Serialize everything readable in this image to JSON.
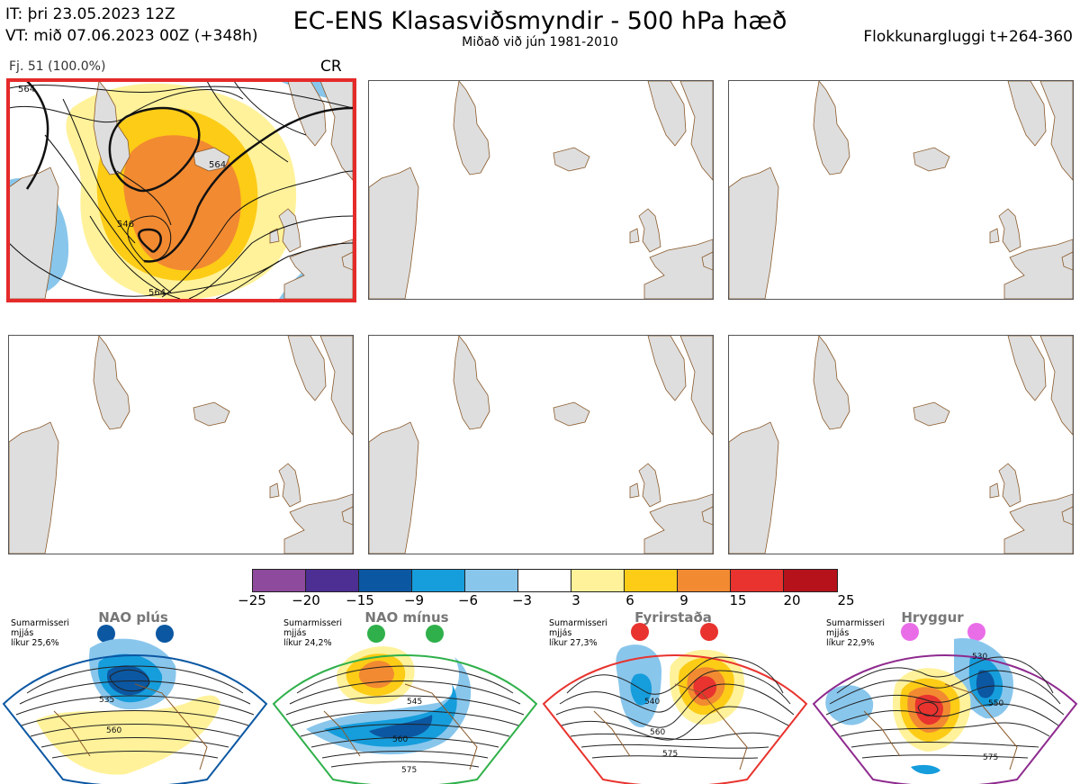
{
  "header": {
    "it_line": "IT: þri 23.05.2023 12Z",
    "vt_line": "VT: mið 07.06.2023 00Z  (+348h)",
    "title": "EC-ENS Klasasviðsmyndir - 500 hPa hæð",
    "subtitle": "Miðað við jún 1981-2010",
    "window": "Flokkunargluggi t+264-360"
  },
  "panel1": {
    "caption": "Fj. 51 (100.0%)",
    "regime_code": "CR",
    "contour_labels": [
      "564",
      "546",
      "564",
      "564"
    ]
  },
  "colorbar": {
    "colors": [
      "#8e4a9c",
      "#4d2e93",
      "#0b57a2",
      "#169ddc",
      "#89c6ec",
      "#ffffff",
      "#fff29a",
      "#fdcc16",
      "#f28a31",
      "#e8332e",
      "#b5121b"
    ],
    "ticks": [
      "−25",
      "−20",
      "−15",
      "−9",
      "−6",
      "−3",
      "3",
      "6",
      "9",
      "15",
      "20",
      "25"
    ]
  },
  "regimes": [
    {
      "name": "NAO plús",
      "season": "Sumarmisseri",
      "smooth": "mjjás",
      "prob": "líkur 25,6%",
      "color": "#0b57a2",
      "labels": [
        "535",
        "560"
      ]
    },
    {
      "name": "NAO mínus",
      "season": "Sumarmisseri",
      "smooth": "mjjás",
      "prob": "líkur 24,2%",
      "color": "#2fb04a",
      "labels": [
        "545",
        "560",
        "575"
      ]
    },
    {
      "name": "Fyrirstaða",
      "season": "Sumarmisseri",
      "smooth": "mjjás",
      "prob": "líkur 27,3%",
      "color": "#e8332e",
      "labels": [
        "540",
        "560",
        "575"
      ]
    },
    {
      "name": "Hryggur",
      "season": "Sumarmisseri",
      "smooth": "mjjás",
      "prob": "líkur 22,9%",
      "color": "#8e2a8e",
      "labels": [
        "530",
        "550",
        "575"
      ]
    }
  ]
}
